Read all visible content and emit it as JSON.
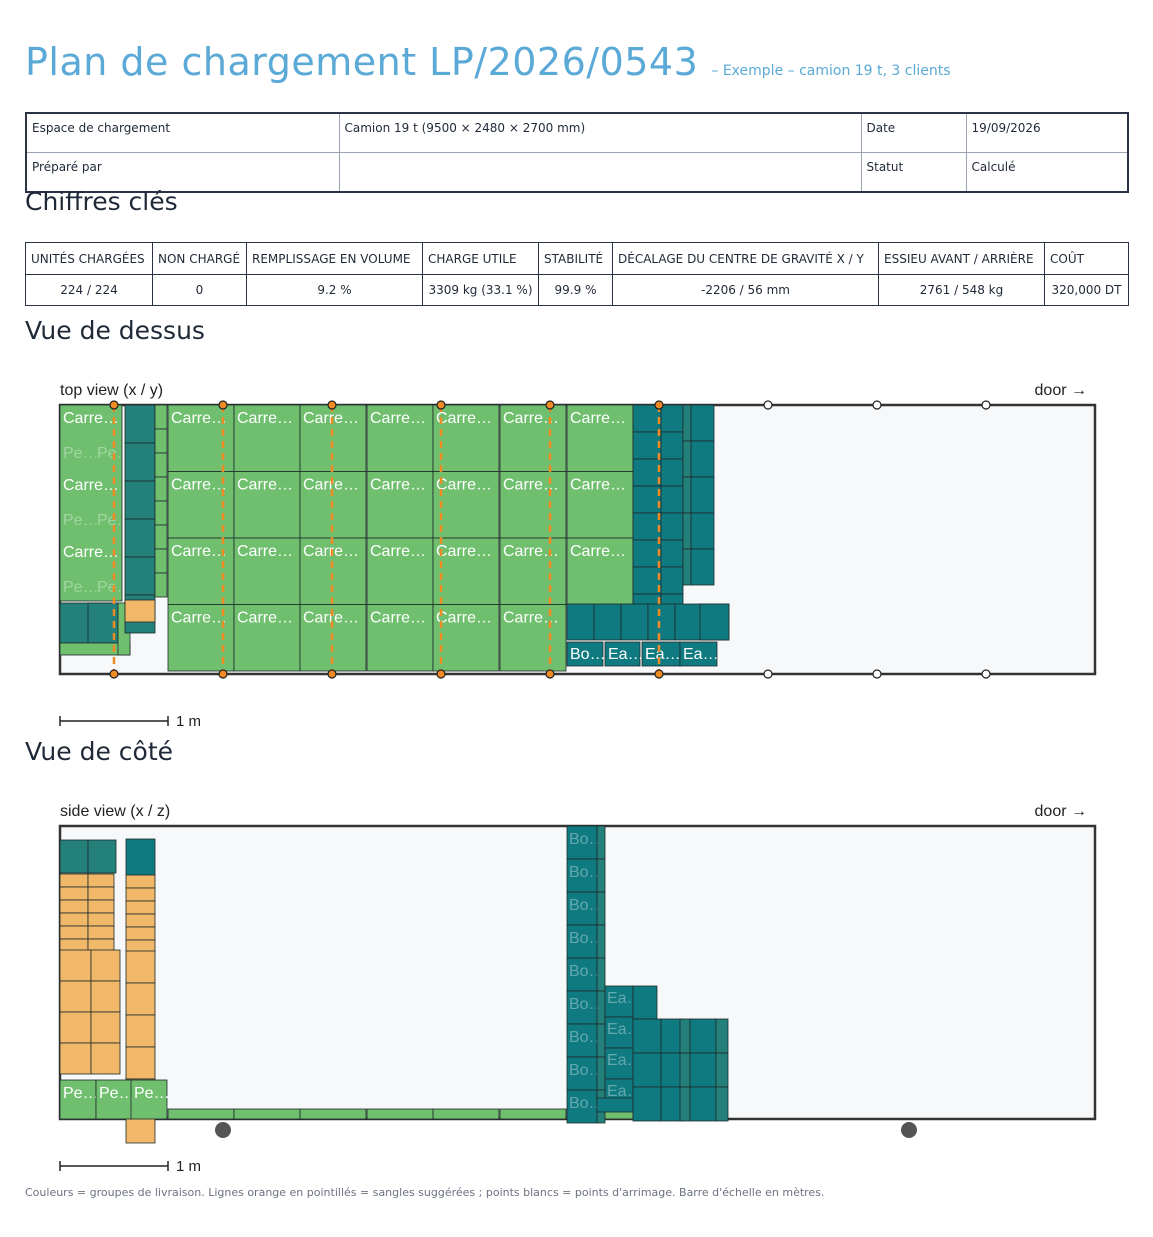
{
  "header": {
    "title": "Plan de chargement LP/2026/0543",
    "subtitle": "– Exemple – camion 19 t, 3 clients"
  },
  "info": {
    "space_label": "Espace de chargement",
    "space_value": "Camion 19 t  (9500 × 2480 × 2700 mm)",
    "date_label": "Date",
    "date_value": "19/09/2026",
    "prepared_label": "Préparé par",
    "prepared_value": "",
    "status_label": "Statut",
    "status_value": "Calculé"
  },
  "kpis": {
    "heading": "Chiffres clés",
    "columns": [
      "UNITÉS CHARGÉES",
      "NON CHARGÉ",
      "REMPLISSAGE EN VOLUME",
      "CHARGE UTILE",
      "STABILITÉ",
      "DÉCALAGE DU CENTRE DE GRAVITÉ X / Y",
      "ESSIEU AVANT / ARRIÈRE",
      "COÛT"
    ],
    "values": [
      "224 / 224",
      "0",
      "9.2 %",
      "3309 kg (33.1 %)",
      "99.9 %",
      "-2206 / 56 mm",
      "2761 / 548 kg",
      "320,000 DT"
    ]
  },
  "top_view": {
    "heading": "Vue de dessus",
    "caption": "top view (x / y)",
    "door": "door →",
    "scale": "1 m"
  },
  "side_view": {
    "heading": "Vue de côté",
    "caption": "side view (x / z)",
    "door": "door →",
    "scale": "1 m"
  },
  "labels": {
    "carre": "Carre…",
    "pe": "Pe…",
    "bo": "Bo…",
    "ea": "Ea…"
  },
  "colors": {
    "title": "#5aa9d6",
    "green": "#6fbf6f",
    "teal": "#23807a",
    "dark_teal": "#0f7a80",
    "orange": "#f0b868",
    "strap": "#f08a24"
  },
  "legend": "Couleurs = groupes de livraison. Lignes orange en pointillés = sangles suggérées ; points blancs = points d'arrimage. Barre d'échelle en mètres."
}
